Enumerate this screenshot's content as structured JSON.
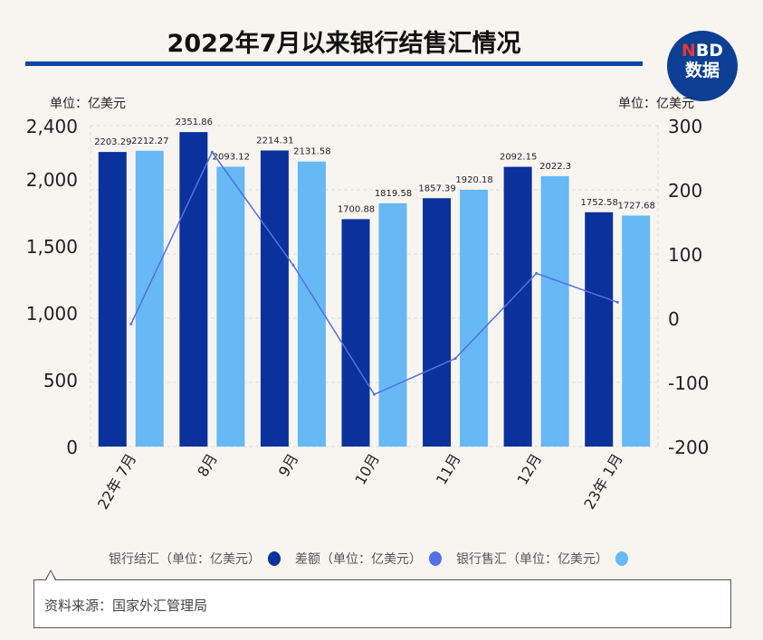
{
  "title": "2022年7月以来银行结售汇情况",
  "logo": {
    "line1_n": "N",
    "line1_rest": "BD",
    "line2": "数据"
  },
  "left_unit": "单位：亿美元",
  "right_unit": "单位：亿美元",
  "source": "资料来源：国家外汇管理局",
  "chart_data": {
    "type": "bar+line",
    "title": "2022年7月以来银行结售汇情况",
    "categories": [
      "22年 7月",
      "8月",
      "9月",
      "10月",
      "11月",
      "12月",
      "23年 1月"
    ],
    "series": [
      {
        "name": "银行结汇（单位：亿美元）",
        "type": "bar",
        "axis": "left",
        "color": "#0b319c",
        "values": [
          2203.29,
          2351.86,
          2214.31,
          1700.88,
          1857.39,
          2092.15,
          1752.58
        ]
      },
      {
        "name": "差额（单位：亿美元）",
        "type": "line",
        "axis": "right",
        "color": "#5470e6",
        "values": [
          -8.98,
          258.74,
          82.73,
          -118.7,
          -62.79,
          69.85,
          24.9
        ]
      },
      {
        "name": "银行售汇（单位：亿美元）",
        "type": "bar",
        "axis": "right_bar",
        "color": "#66b9f4",
        "values": [
          2212.27,
          2093.12,
          2131.58,
          1819.58,
          1920.18,
          2022.3,
          1727.68
        ]
      }
    ],
    "data_labels": {
      "settlement": [
        "2203.29",
        "2351.86",
        "2214.31",
        "1700.88",
        "1857.39",
        "2092.15",
        "1752.58"
      ],
      "sale": [
        "2212.27",
        "2093.12",
        "2131.58",
        "1819.58",
        "1920.18",
        "2022.3",
        "1727.68"
      ]
    },
    "left_axis": {
      "ylim": [
        0,
        2400
      ],
      "ticks": [
        "0",
        "500",
        "1,000",
        "1,500",
        "2,000",
        "2,400"
      ],
      "tick_values": [
        0,
        500,
        1000,
        1500,
        2000,
        2400
      ]
    },
    "right_axis": {
      "ylim": [
        -200,
        300
      ],
      "ticks": [
        "-200",
        "-100",
        "0",
        "100",
        "200",
        "300"
      ],
      "tick_values": [
        -200,
        -100,
        0,
        100,
        200,
        300
      ]
    },
    "grid": true,
    "legend": "bottom"
  }
}
